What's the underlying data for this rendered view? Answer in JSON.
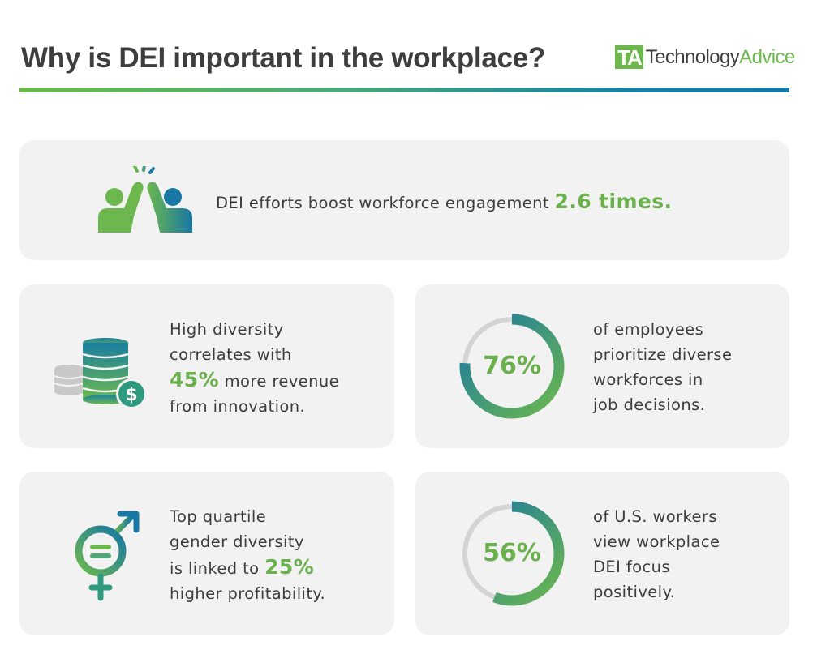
{
  "header": {
    "title": "Why is DEI important in the workplace?",
    "logo_mark": "TA",
    "logo_tech": "Technology",
    "logo_advice": "Advice"
  },
  "colors": {
    "green": "#6ab04c",
    "blue": "#1877a3",
    "card_bg": "#f2f2f2",
    "text": "#3d3d3d",
    "ring_track": "#d4d4d4"
  },
  "cards": {
    "engagement": {
      "icon": "high-five-icon",
      "text": "DEI efforts boost workforce engagement",
      "highlight": "2.6 times."
    },
    "revenue": {
      "icon": "coins-dollar-icon",
      "line1": "High diversity",
      "line2": "correlates with",
      "highlight": "45%",
      "line3_rest": " more revenue",
      "line4": "from innovation."
    },
    "employees": {
      "percent_label": "76%",
      "percent_value": 76,
      "line1": "of employees",
      "line2": "prioritize diverse",
      "line3": "workforces in",
      "line4": "job decisions."
    },
    "profitability": {
      "icon": "gender-symbol-icon",
      "line1": "Top quartile",
      "line2": "gender diversity",
      "line3_start": "is linked to ",
      "highlight": "25%",
      "line4": "higher profitability."
    },
    "workers": {
      "percent_label": "56%",
      "percent_value": 56,
      "line1": "of U.S. workers",
      "line2": "view workplace",
      "line3": "DEI focus",
      "line4": "positively."
    }
  }
}
